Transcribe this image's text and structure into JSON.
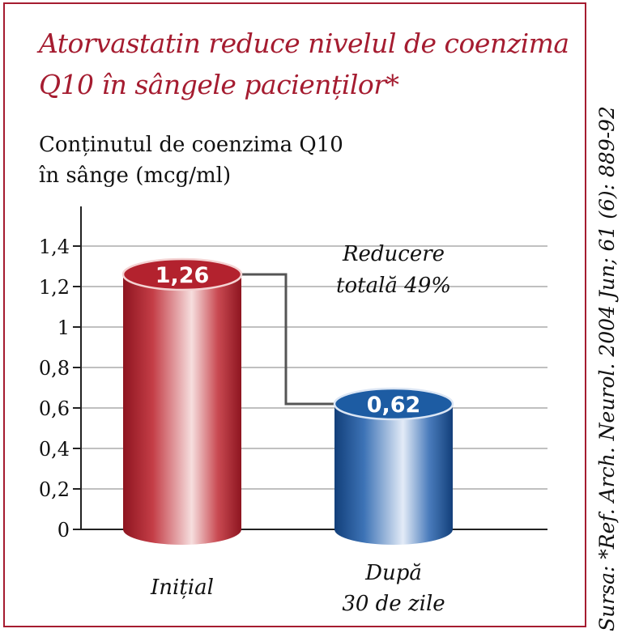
{
  "chart_data": {
    "type": "bar",
    "title": "Atorvastatin reduce nivelul de coenzima Q10 în sângele pacienților*",
    "ylabel": "Conținutul de coenzima Q10\nîn sânge (mcg/ml)",
    "xlabel": "",
    "categories": [
      "Inițial",
      "După 30 de zile"
    ],
    "values": [
      1.26,
      0.62
    ],
    "value_labels": [
      "1,26",
      "0,62"
    ],
    "ylim": [
      0,
      1.4
    ],
    "yticks": [
      0,
      0.2,
      0.4,
      0.6,
      0.8,
      1,
      1.2,
      1.4
    ],
    "ytick_labels": [
      "0",
      "0,2",
      "0,4",
      "0,6",
      "0,8",
      "1",
      "1,2",
      "1,4"
    ],
    "grid": true,
    "annotation": [
      "Reducere",
      "totală 49%"
    ],
    "source": "Sursa: *Ref. Arch. Neurol. 2004 Jun; 61 (6): 889-92",
    "colors": {
      "bar1_main": "#b3222e",
      "bar1_light": "#f1c9c9",
      "bar2_main": "#1d5ca3",
      "bar2_light": "#cfdcef",
      "frame": "#a51c30"
    }
  }
}
